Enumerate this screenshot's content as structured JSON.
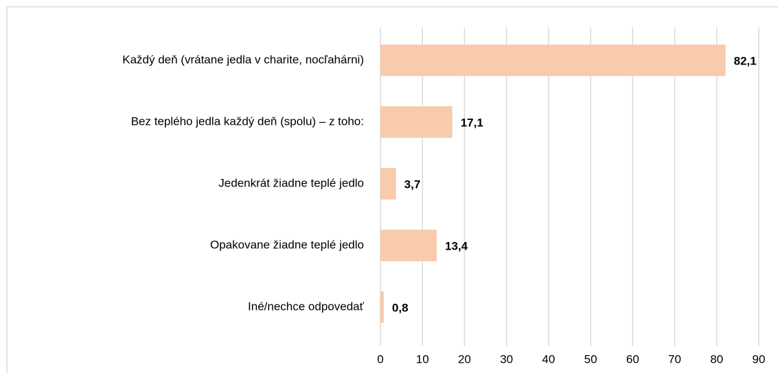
{
  "chart_data": {
    "type": "bar",
    "orientation": "horizontal",
    "categories": [
      "Každý deň (vrátane jedla v charite, nocľahárni)",
      "Bez teplého jedla každý deň (spolu) – z toho:",
      "Jedenkrát žiadne teplé jedlo",
      "Opakovane žiadne teplé jedlo",
      "Iné/nechce odpovedať"
    ],
    "values": [
      82.1,
      17.1,
      3.7,
      13.4,
      0.8
    ],
    "value_labels": [
      "82,1",
      "17,1",
      "3,7",
      "13,4",
      "0,8"
    ],
    "color": "#f8cbad",
    "xlim": [
      0,
      90
    ],
    "xticks": [
      0,
      10,
      20,
      30,
      40,
      50,
      60,
      70,
      80,
      90
    ],
    "grid": true
  }
}
